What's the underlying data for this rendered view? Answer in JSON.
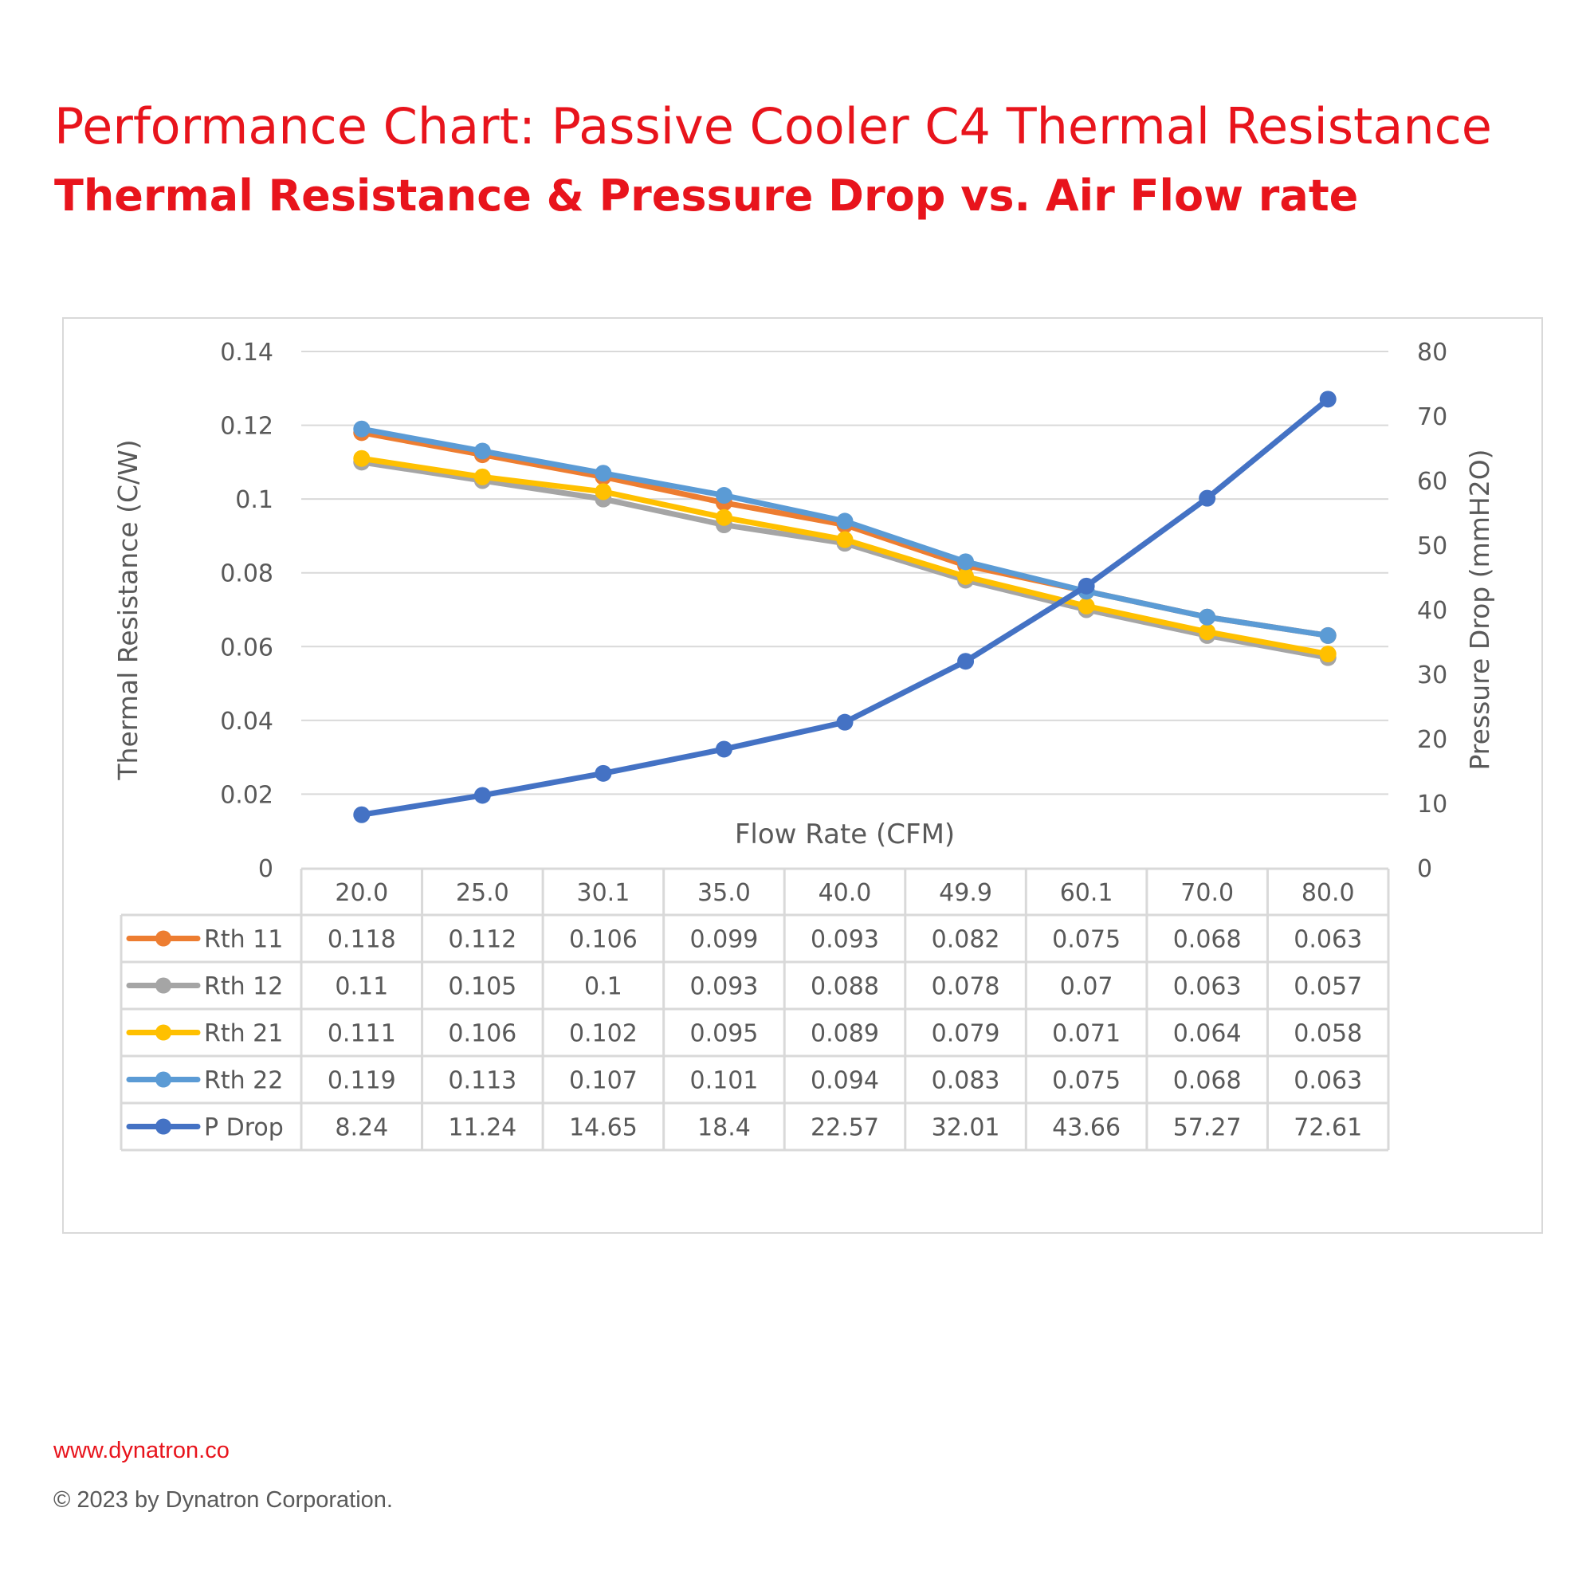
{
  "header": {
    "title": "Performance Chart: Passive Cooler C4 Thermal Resistance",
    "subtitle": "Thermal Resistance & Pressure Drop vs. Air Flow rate"
  },
  "footer": {
    "website": "www.dynatron.co",
    "copyright": "© 2023 by Dynatron Corporation."
  },
  "chart_data": {
    "type": "line",
    "xlabel": "Flow Rate (CFM)",
    "ylabel": "Thermal Resistance (C/W)",
    "y2label": "Pressure Drop (mmH2O)",
    "categories": [
      "20.0",
      "25.0",
      "30.1",
      "35.0",
      "40.0",
      "49.9",
      "60.1",
      "70.0",
      "80.0"
    ],
    "ylim": [
      0,
      0.14
    ],
    "yticks": [
      "0",
      "0.02",
      "0.04",
      "0.06",
      "0.08",
      "0.1",
      "0.12",
      "0.14"
    ],
    "y2lim": [
      0,
      80
    ],
    "y2ticks": [
      "0",
      "10",
      "20",
      "30",
      "40",
      "50",
      "60",
      "70",
      "80"
    ],
    "grid": true,
    "legend": "data-table",
    "series": [
      {
        "name": "Rth 11",
        "axis": "left",
        "color": "#ed7d31",
        "values": [
          0.118,
          0.112,
          0.106,
          0.099,
          0.093,
          0.082,
          0.075,
          0.068,
          0.063
        ],
        "labels": [
          "0.118",
          "0.112",
          "0.106",
          "0.099",
          "0.093",
          "0.082",
          "0.075",
          "0.068",
          "0.063"
        ]
      },
      {
        "name": "Rth 12",
        "axis": "left",
        "color": "#a5a5a5",
        "values": [
          0.11,
          0.105,
          0.1,
          0.093,
          0.088,
          0.078,
          0.07,
          0.063,
          0.057
        ],
        "labels": [
          "0.11",
          "0.105",
          "0.1",
          "0.093",
          "0.088",
          "0.078",
          "0.07",
          "0.063",
          "0.057"
        ]
      },
      {
        "name": "Rth 21",
        "axis": "left",
        "color": "#ffc000",
        "values": [
          0.111,
          0.106,
          0.102,
          0.095,
          0.089,
          0.079,
          0.071,
          0.064,
          0.058
        ],
        "labels": [
          "0.111",
          "0.106",
          "0.102",
          "0.095",
          "0.089",
          "0.079",
          "0.071",
          "0.064",
          "0.058"
        ]
      },
      {
        "name": "Rth 22",
        "axis": "left",
        "color": "#5b9bd5",
        "values": [
          0.119,
          0.113,
          0.107,
          0.101,
          0.094,
          0.083,
          0.075,
          0.068,
          0.063
        ],
        "labels": [
          "0.119",
          "0.113",
          "0.107",
          "0.101",
          "0.094",
          "0.083",
          "0.075",
          "0.068",
          "0.063"
        ]
      },
      {
        "name": "P Drop",
        "axis": "right",
        "color": "#4472c4",
        "values": [
          8.24,
          11.24,
          14.65,
          18.4,
          22.57,
          32.01,
          43.66,
          57.27,
          72.61
        ],
        "labels": [
          "8.24",
          "11.24",
          "14.65",
          "18.4",
          "22.57",
          "32.01",
          "43.66",
          "57.27",
          "72.61"
        ]
      }
    ]
  }
}
